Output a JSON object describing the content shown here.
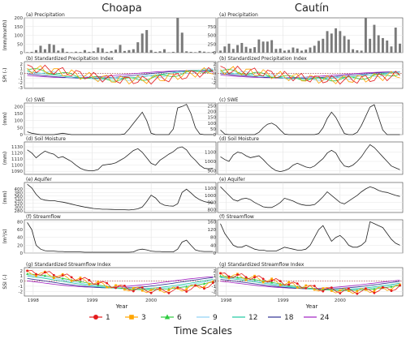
{
  "figure": {
    "columns": [
      "Choapa",
      "Cautín"
    ],
    "xlabel": "Year",
    "legend_title": "Time Scales"
  },
  "chart_data": {
    "type": "line",
    "x_range": [
      1997.85,
      2001.1
    ],
    "x_ticks": [
      "1998",
      "1999",
      "2000"
    ],
    "scale_colors": {
      "1": "#e41a1c",
      "3": "#ffa500",
      "6": "#2ecc40",
      "9": "#8fd3f5",
      "12": "#1fc8a0",
      "18": "#2e3192",
      "24": "#a020c0"
    },
    "legend": {
      "labels": [
        "1",
        "3",
        "6",
        "9",
        "12",
        "18",
        "24"
      ],
      "markers": [
        "circle",
        "square",
        "triangle",
        "none",
        "none",
        "none",
        "none"
      ]
    },
    "panels": [
      {
        "key": "precip",
        "title": "(a) Precipitation",
        "ylabel": "(mm/month)",
        "type": "bar",
        "left": {
          "ylim": [
            0,
            200
          ],
          "yticks": [
            "0",
            "50",
            "100",
            "150",
            "200"
          ],
          "values": [
            3,
            5,
            15,
            40,
            20,
            50,
            45,
            12,
            25,
            5,
            3,
            6,
            4,
            15,
            5,
            8,
            30,
            25,
            5,
            10,
            18,
            45,
            10,
            15,
            20,
            60,
            110,
            130,
            15,
            5,
            8,
            20,
            2,
            5,
            200,
            115,
            8,
            5,
            3,
            10,
            6,
            3,
            5
          ]
        },
        "right": {
          "ylim": [
            0,
            1000
          ],
          "yticks": [
            "0",
            "250",
            "500",
            "750"
          ],
          "values": [
            60,
            180,
            260,
            110,
            220,
            280,
            170,
            120,
            160,
            380,
            320,
            320,
            360,
            110,
            120,
            60,
            80,
            150,
            120,
            60,
            90,
            150,
            200,
            340,
            400,
            620,
            550,
            700,
            620,
            480,
            380,
            100,
            70,
            60,
            1000,
            400,
            800,
            500,
            420,
            350,
            180,
            720,
            260
          ]
        }
      },
      {
        "key": "spi",
        "title": "(b) Standardized Precipitation Index",
        "ylabel": "SPI (-)",
        "type": "multiline",
        "dotted_zero": true,
        "left": {
          "ylim": [
            -3.2,
            2.5
          ],
          "yticks": [
            "-3",
            "-2",
            "-1",
            "0",
            "1",
            "2"
          ]
        },
        "right": {
          "ylim": [
            -3.2,
            2.5
          ],
          "yticks": [
            "-2",
            "-1",
            "0",
            "1",
            "2"
          ]
        }
      },
      {
        "key": "swe",
        "title": "(c) SWE",
        "ylabel": "(mm)",
        "type": "line",
        "left": {
          "ylim": [
            0,
            225
          ],
          "yticks": [
            "0",
            "50",
            "100",
            "150",
            "200"
          ],
          "values": [
            20,
            10,
            5,
            0,
            0,
            0,
            0,
            5,
            10,
            5,
            0,
            0,
            0,
            0,
            0,
            0,
            0,
            0,
            0,
            0,
            0,
            0,
            5,
            40,
            80,
            120,
            160,
            100,
            10,
            0,
            0,
            0,
            0,
            40,
            190,
            200,
            215,
            150,
            50,
            5,
            0,
            0,
            0
          ]
        },
        "right": {
          "ylim": [
            0,
            275
          ],
          "yticks": [
            "0",
            "50",
            "100",
            "150",
            "200",
            "250"
          ],
          "values": [
            40,
            5,
            0,
            0,
            0,
            0,
            0,
            0,
            0,
            20,
            60,
            90,
            100,
            80,
            40,
            5,
            0,
            0,
            0,
            0,
            0,
            0,
            0,
            10,
            60,
            140,
            195,
            150,
            80,
            10,
            0,
            0,
            20,
            80,
            160,
            240,
            260,
            150,
            40,
            0,
            0,
            0,
            0
          ]
        }
      },
      {
        "key": "soil",
        "title": "(d) Soil Moisture",
        "ylabel": "(mm)",
        "type": "line",
        "left": {
          "ylim": [
            1085,
            1138
          ],
          "yticks": [
            "1090",
            "1100",
            "1110",
            "1120",
            "1130"
          ],
          "values": [
            1125,
            1120,
            1112,
            1118,
            1123,
            1120,
            1118,
            1112,
            1114,
            1110,
            1106,
            1100,
            1095,
            1092,
            1091,
            1091,
            1093,
            1100,
            1101,
            1102,
            1104,
            1108,
            1112,
            1118,
            1124,
            1127,
            1121,
            1112,
            1103,
            1100,
            1108,
            1113,
            1118,
            1122,
            1128,
            1130,
            1125,
            1115,
            1108,
            1100,
            1095,
            1094,
            1095
          ]
        },
        "right": {
          "ylim": [
            860,
            1210
          ],
          "yticks": [
            "900",
            "1000",
            "1100"
          ],
          "values": [
            1050,
            1020,
            1000,
            1070,
            1100,
            1090,
            1060,
            1040,
            1050,
            1060,
            1020,
            970,
            930,
            900,
            890,
            900,
            920,
            960,
            980,
            960,
            940,
            930,
            950,
            990,
            1030,
            1090,
            1120,
            1090,
            1010,
            950,
            940,
            960,
            1000,
            1050,
            1120,
            1180,
            1150,
            1100,
            1050,
            1000,
            950,
            930,
            910
          ]
        }
      },
      {
        "key": "aquifer",
        "title": "(e) Aquifer",
        "ylabel": "(mm)",
        "type": "line",
        "left": {
          "ylim": [
            270,
            435
          ],
          "yticks": [
            "280",
            "300",
            "320",
            "340",
            "360",
            "380",
            "400"
          ],
          "values": [
            425,
            405,
            370,
            345,
            338,
            335,
            335,
            330,
            327,
            322,
            316,
            310,
            305,
            300,
            296,
            292,
            290,
            288,
            288,
            287,
            286,
            285,
            285,
            284,
            286,
            290,
            300,
            330,
            365,
            350,
            322,
            310,
            306,
            305,
            318,
            380,
            398,
            378,
            355,
            340,
            330,
            325,
            322
          ]
        },
        "right": {
          "ylim": [
            760,
            1180
          ],
          "yticks": [
            "800",
            "900",
            "1000",
            "1100"
          ],
          "values": [
            1120,
            1060,
            1000,
            940,
            920,
            950,
            960,
            940,
            900,
            870,
            840,
            830,
            830,
            860,
            900,
            960,
            940,
            920,
            890,
            870,
            860,
            860,
            870,
            920,
            980,
            1050,
            1000,
            950,
            900,
            880,
            920,
            960,
            1000,
            1050,
            1090,
            1120,
            1100,
            1070,
            1050,
            1040,
            1020,
            1000,
            985
          ]
        }
      },
      {
        "key": "flow",
        "title": "(f) Streamflow",
        "ylabel": "(m³/s)",
        "type": "line",
        "left": {
          "ylim": [
            0,
            85
          ],
          "yticks": [
            "0",
            "20",
            "40",
            "60",
            "80"
          ],
          "values": [
            78,
            60,
            20,
            10,
            6,
            5,
            5,
            4,
            4,
            3,
            3,
            3,
            3,
            2,
            2,
            2,
            2,
            2,
            2,
            2,
            2,
            2,
            2,
            2,
            3,
            8,
            10,
            8,
            5,
            4,
            4,
            3,
            3,
            3,
            10,
            28,
            33,
            20,
            8,
            5,
            4,
            4,
            4
          ]
        },
        "right": {
          "ylim": [
            0,
            170
          ],
          "yticks": [
            "0",
            "40",
            "80",
            "120",
            "160"
          ],
          "values": [
            150,
            100,
            70,
            40,
            30,
            30,
            40,
            30,
            20,
            15,
            15,
            10,
            10,
            10,
            20,
            30,
            25,
            20,
            15,
            15,
            20,
            40,
            80,
            120,
            140,
            100,
            60,
            80,
            90,
            70,
            40,
            30,
            30,
            40,
            60,
            160,
            150,
            140,
            130,
            100,
            70,
            50,
            40
          ]
        }
      },
      {
        "key": "ssi",
        "title": "(g) Standardized Streamflow Index",
        "ylabel": "SSI (-)",
        "type": "multiline",
        "dotted_zero": true,
        "left": {
          "ylim": [
            -2.9,
            2.6
          ],
          "yticks": [
            "-2",
            "-1",
            "0",
            "1",
            "2"
          ]
        },
        "right": {
          "ylim": [
            -2.9,
            2.6
          ],
          "yticks": [
            "-2",
            "-1",
            "0",
            "1",
            "2"
          ]
        }
      }
    ]
  }
}
